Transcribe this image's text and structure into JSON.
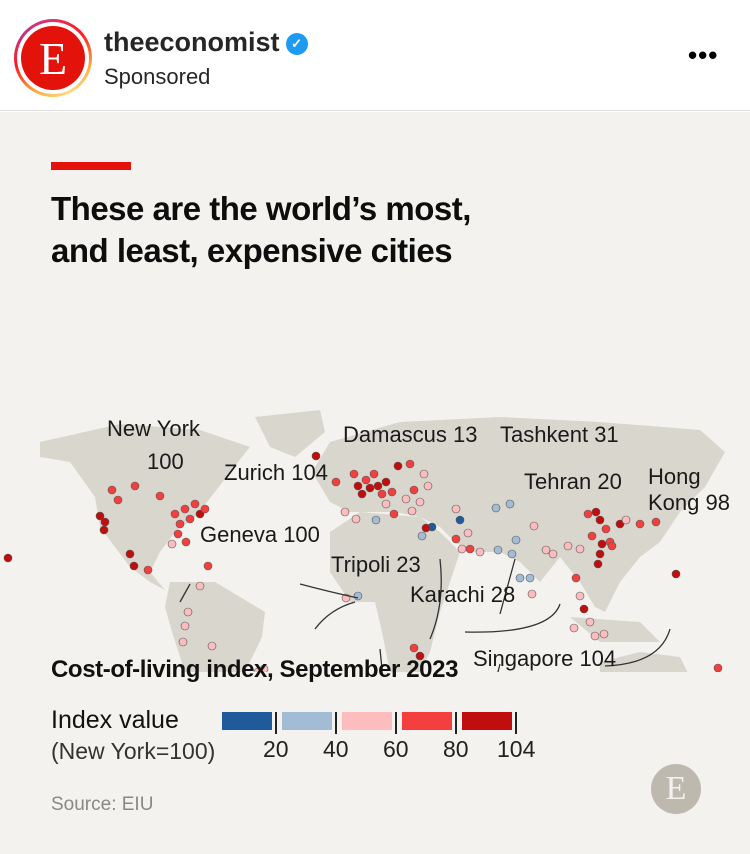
{
  "post": {
    "username": "theeconomist",
    "sponsored": "Sponsored",
    "avatar_letter": "E",
    "verified_icon": "verified-badge-icon",
    "more_icon": "more-horizontal-icon"
  },
  "infographic": {
    "title_line1": "These are the world’s most,",
    "title_line2": "and least, expensive cities",
    "subtitle": "Cost-of-living index, September 2023",
    "cities": [
      {
        "name": "New York",
        "value": "100"
      },
      {
        "name": "Zurich",
        "value": "104"
      },
      {
        "name": "Geneva",
        "value": "100"
      },
      {
        "name": "Damascus",
        "value": "13"
      },
      {
        "name": "Tripoli",
        "value": "23"
      },
      {
        "name": "Tashkent",
        "value": "31"
      },
      {
        "name": "Tehran",
        "value": "20"
      },
      {
        "name": "Karachi",
        "value": "28"
      },
      {
        "name": "Hong Kong",
        "value": "98"
      },
      {
        "name": "Singapore",
        "value": "104"
      }
    ],
    "legend": {
      "title": "Index value",
      "note": "(New York=100)",
      "ticks": [
        "20",
        "40",
        "60",
        "80",
        "104"
      ],
      "colors": [
        "#1f5b9a",
        "#a3bcd6",
        "#fdbcbd",
        "#f3403f",
        "#c00e0e"
      ]
    },
    "source": "Source: EIU",
    "logo_letter": "E"
  }
}
